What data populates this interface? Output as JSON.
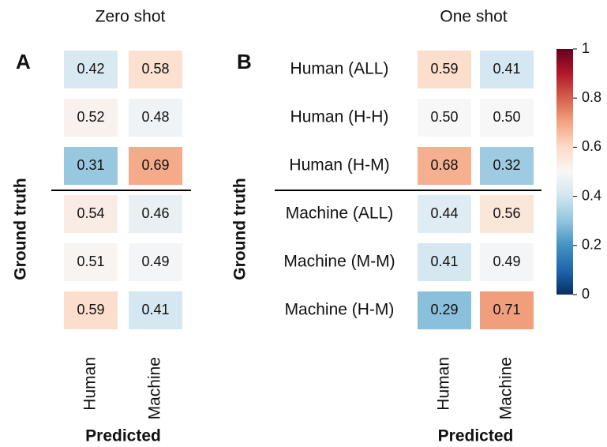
{
  "chart_data": [
    {
      "type": "heatmap",
      "panel": "A",
      "title": "Zero shot",
      "xlabel": "Predicted",
      "ylabel": "Ground truth",
      "x": [
        "Human",
        "Machine"
      ],
      "y": [
        null,
        null,
        null,
        null,
        null,
        null
      ],
      "values": [
        [
          0.42,
          0.58
        ],
        [
          0.52,
          0.48
        ],
        [
          0.31,
          0.69
        ],
        [
          0.54,
          0.46
        ],
        [
          0.51,
          0.49
        ],
        [
          0.59,
          0.41
        ]
      ],
      "value_labels": [
        [
          "0.42",
          "0.58"
        ],
        [
          "0.52",
          "0.48"
        ],
        [
          "0.31",
          "0.69"
        ],
        [
          "0.54",
          "0.46"
        ],
        [
          "0.51",
          "0.49"
        ],
        [
          "0.59",
          "0.41"
        ]
      ]
    },
    {
      "type": "heatmap",
      "panel": "B",
      "title": "One shot",
      "xlabel": "Predicted",
      "ylabel": "Ground truth",
      "x": [
        "Human",
        "Machine"
      ],
      "y": [
        "Human (ALL)",
        "Human (H-H)",
        "Human (H-M)",
        "Machine (ALL)",
        "Machine (M-M)",
        "Machine (H-M)"
      ],
      "values": [
        [
          0.59,
          0.41
        ],
        [
          0.5,
          0.5
        ],
        [
          0.68,
          0.32
        ],
        [
          0.44,
          0.56
        ],
        [
          0.41,
          0.49
        ],
        [
          0.29,
          0.71
        ]
      ],
      "value_labels": [
        [
          "0.59",
          "0.41"
        ],
        [
          "0.50",
          "0.50"
        ],
        [
          "0.68",
          "0.32"
        ],
        [
          "0.44",
          "0.56"
        ],
        [
          "0.41",
          "0.49"
        ],
        [
          "0.29",
          "0.71"
        ]
      ]
    }
  ],
  "colorbar": {
    "zlim": [
      0,
      1
    ],
    "ticks": [
      0,
      0.2,
      0.4,
      0.6,
      0.8,
      1
    ],
    "colors": [
      "#053061",
      "#2166ac",
      "#4393c3",
      "#92c5de",
      "#d1e5f0",
      "#f7f7f7",
      "#fddbc7",
      "#f4a582",
      "#d6604d",
      "#b2182b",
      "#67001f"
    ]
  }
}
